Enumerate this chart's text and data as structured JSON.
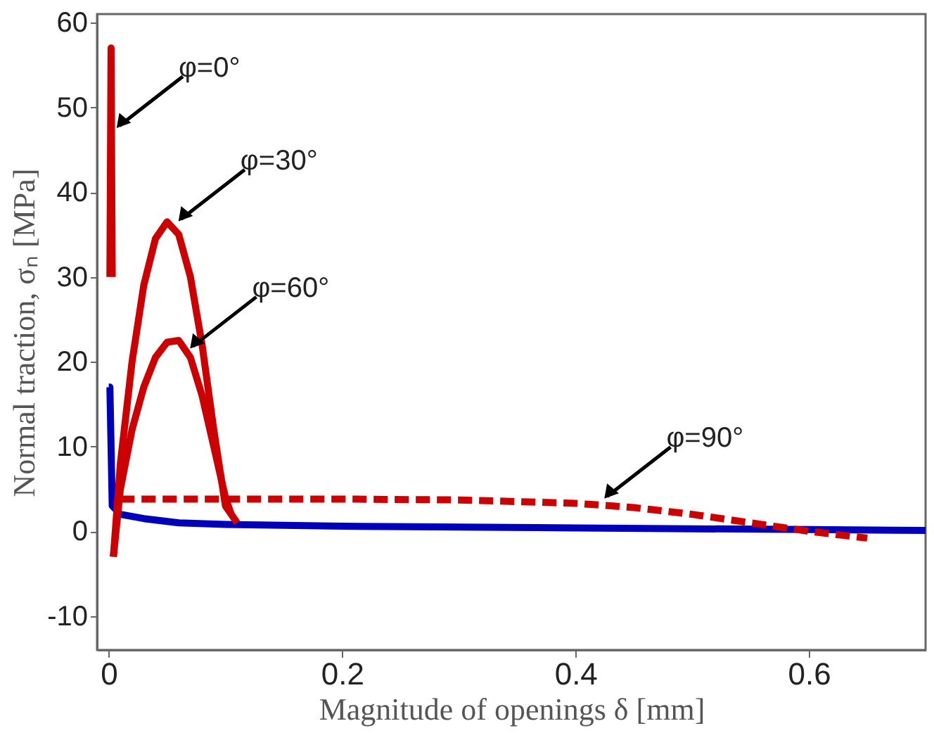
{
  "chart_data": {
    "type": "line",
    "xlabel": "Magnitude of openings δ [mm]",
    "ylabel": "Normal traction, σₙ [MPa]",
    "xlim": [
      -0.01,
      0.7
    ],
    "ylim": [
      -14,
      61
    ],
    "xticks": [
      0,
      0.2,
      0.4,
      0.6
    ],
    "yticks": [
      -10,
      0,
      10,
      20,
      30,
      40,
      50,
      60
    ],
    "grid": false,
    "marker": "none",
    "series": [
      {
        "color": "#0000bb",
        "x": [
          0.0,
          0.001,
          0.003,
          0.01,
          0.03,
          0.06,
          0.1,
          0.2,
          0.3,
          0.4,
          0.5,
          0.6,
          0.7
        ],
        "values": [
          17,
          17,
          3,
          2,
          1.5,
          1,
          0.8,
          0.6,
          0.5,
          0.4,
          0.3,
          0.2,
          0.1
        ]
      },
      {
        "color": "#cc0000",
        "x": [
          0.001,
          0.002,
          0.003
        ],
        "values": [
          30,
          57,
          30
        ]
      },
      {
        "color": "#cc0000",
        "x": [
          0.004,
          0.01,
          0.02,
          0.03,
          0.04,
          0.05,
          0.06,
          0.07,
          0.08,
          0.09,
          0.1,
          0.11
        ],
        "values": [
          -3,
          8,
          20,
          29,
          34.5,
          36.5,
          35,
          30,
          22,
          12,
          3,
          1
        ]
      },
      {
        "color": "#cc0000",
        "x": [
          0.004,
          0.01,
          0.02,
          0.03,
          0.04,
          0.05,
          0.06,
          0.07,
          0.08,
          0.09,
          0.1,
          0.105
        ],
        "values": [
          -3,
          5,
          12,
          17,
          20.5,
          22.3,
          22.5,
          20.5,
          16,
          10,
          4,
          2
        ]
      },
      {
        "color": "#cc0000",
        "line_style": "dashed",
        "x": [
          0.01,
          0.1,
          0.2,
          0.3,
          0.4,
          0.45,
          0.5,
          0.55,
          0.6,
          0.65
        ],
        "values": [
          3.8,
          3.8,
          3.8,
          3.7,
          3.3,
          2.8,
          2,
          1,
          0,
          -0.8
        ]
      }
    ],
    "annotations": [
      {
        "text": "φ=0°",
        "x": 0.002,
        "y": 47
      },
      {
        "text": "φ=30°",
        "x": 0.055,
        "y": 36
      },
      {
        "text": "φ=60°",
        "x": 0.065,
        "y": 21
      },
      {
        "text": "φ=90°",
        "x": 0.42,
        "y": 3.3
      }
    ]
  }
}
